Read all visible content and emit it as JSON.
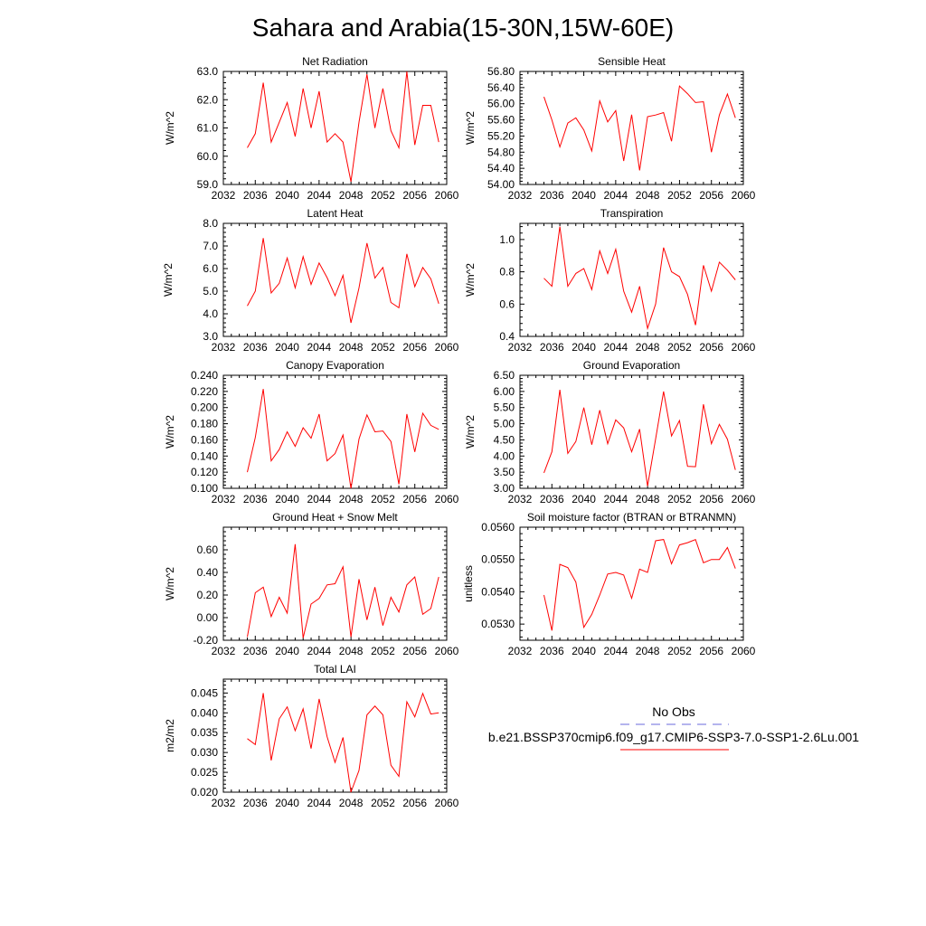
{
  "title": "Sahara and Arabia(15-30N,15W-60E)",
  "colors": {
    "model": "#ff0000",
    "obs": "#6a6adc",
    "axis": "#000000"
  },
  "legend": {
    "obs_label": "No Obs",
    "model_label": "b.e21.BSSP370cmip6.f09_g17.CMIP6-SSP3-7.0-SSP1-2.6Lu.001"
  },
  "chart_data": [
    {
      "type": "line",
      "title": "Net Radiation",
      "ylabel": "W/m^2",
      "xlim": [
        2032,
        2060
      ],
      "ylim": [
        59.0,
        63.0
      ],
      "xticks": [
        "2032",
        "2036",
        "2040",
        "2044",
        "2048",
        "2052",
        "2056",
        "2060"
      ],
      "yticks": [
        "59.0",
        "60.0",
        "61.0",
        "62.0",
        "63.0"
      ],
      "x": [
        2035,
        2036,
        2037,
        2038,
        2039,
        2040,
        2041,
        2042,
        2043,
        2044,
        2045,
        2046,
        2047,
        2048,
        2049,
        2050,
        2051,
        2052,
        2053,
        2054,
        2055,
        2056,
        2057,
        2058,
        2059
      ],
      "series": [
        {
          "values": [
            60.3,
            60.8,
            62.6,
            60.5,
            61.2,
            61.9,
            60.7,
            62.4,
            61.0,
            62.3,
            60.5,
            60.8,
            60.5,
            59.1,
            61.2,
            62.9,
            61.0,
            62.4,
            60.9,
            60.3,
            63.0,
            60.4,
            61.8,
            61.8,
            60.5
          ]
        }
      ]
    },
    {
      "type": "line",
      "title": "Sensible Heat",
      "ylabel": "W/m^2",
      "xlim": [
        2032,
        2060
      ],
      "ylim": [
        54.0,
        56.8
      ],
      "xticks": [
        "2032",
        "2036",
        "2040",
        "2044",
        "2048",
        "2052",
        "2056",
        "2060"
      ],
      "yticks": [
        "54.00",
        "54.40",
        "54.80",
        "55.20",
        "55.60",
        "56.00",
        "56.40",
        "56.80"
      ],
      "x": [
        2035,
        2036,
        2037,
        2038,
        2039,
        2040,
        2041,
        2042,
        2043,
        2044,
        2045,
        2046,
        2047,
        2048,
        2049,
        2050,
        2051,
        2052,
        2053,
        2054,
        2055,
        2056,
        2057,
        2058,
        2059
      ],
      "series": [
        {
          "values": [
            56.17,
            55.6,
            54.93,
            55.52,
            55.65,
            55.35,
            54.83,
            56.07,
            55.55,
            55.83,
            54.58,
            55.73,
            54.35,
            55.68,
            55.72,
            55.78,
            55.07,
            56.44,
            56.25,
            56.03,
            56.05,
            54.8,
            55.72,
            56.24,
            55.65
          ]
        }
      ]
    },
    {
      "type": "line",
      "title": "Latent Heat",
      "ylabel": "W/m^2",
      "xlim": [
        2032,
        2060
      ],
      "ylim": [
        3.0,
        8.0
      ],
      "xticks": [
        "2032",
        "2036",
        "2040",
        "2044",
        "2048",
        "2052",
        "2056",
        "2060"
      ],
      "yticks": [
        "3.0",
        "4.0",
        "5.0",
        "6.0",
        "7.0",
        "8.0"
      ],
      "x": [
        2035,
        2036,
        2037,
        2038,
        2039,
        2040,
        2041,
        2042,
        2043,
        2044,
        2045,
        2046,
        2047,
        2048,
        2049,
        2050,
        2051,
        2052,
        2053,
        2054,
        2055,
        2056,
        2057,
        2058,
        2059
      ],
      "series": [
        {
          "values": [
            4.35,
            5.0,
            7.35,
            4.92,
            5.35,
            6.47,
            5.15,
            6.53,
            5.3,
            6.25,
            5.6,
            4.8,
            5.7,
            3.6,
            5.15,
            7.13,
            5.58,
            6.05,
            4.5,
            4.27,
            6.65,
            5.2,
            6.05,
            5.55,
            4.45
          ]
        }
      ]
    },
    {
      "type": "line",
      "title": "Transpiration",
      "ylabel": "W/m^2",
      "xlim": [
        2032,
        2060
      ],
      "ylim": [
        0.4,
        1.1
      ],
      "xticks": [
        "2032",
        "2036",
        "2040",
        "2044",
        "2048",
        "2052",
        "2056",
        "2060"
      ],
      "yticks": [
        "0.4",
        "0.6",
        "0.8",
        "1.0"
      ],
      "x": [
        2035,
        2036,
        2037,
        2038,
        2039,
        2040,
        2041,
        2042,
        2043,
        2044,
        2045,
        2046,
        2047,
        2048,
        2049,
        2050,
        2051,
        2052,
        2053,
        2054,
        2055,
        2056,
        2057,
        2058,
        2059
      ],
      "series": [
        {
          "values": [
            0.76,
            0.71,
            1.08,
            0.71,
            0.79,
            0.82,
            0.69,
            0.93,
            0.79,
            0.94,
            0.68,
            0.55,
            0.71,
            0.45,
            0.6,
            0.95,
            0.8,
            0.77,
            0.66,
            0.47,
            0.84,
            0.68,
            0.86,
            0.81,
            0.75
          ]
        }
      ]
    },
    {
      "type": "line",
      "title": "Canopy Evaporation",
      "ylabel": "W/m^2",
      "xlim": [
        2032,
        2060
      ],
      "ylim": [
        0.1,
        0.24
      ],
      "xticks": [
        "2032",
        "2036",
        "2040",
        "2044",
        "2048",
        "2052",
        "2056",
        "2060"
      ],
      "yticks": [
        "0.100",
        "0.120",
        "0.140",
        "0.160",
        "0.180",
        "0.200",
        "0.220",
        "0.240"
      ],
      "x": [
        2035,
        2036,
        2037,
        2038,
        2039,
        2040,
        2041,
        2042,
        2043,
        2044,
        2045,
        2046,
        2047,
        2048,
        2049,
        2050,
        2051,
        2052,
        2053,
        2054,
        2055,
        2056,
        2057,
        2058,
        2059
      ],
      "series": [
        {
          "values": [
            0.12,
            0.163,
            0.223,
            0.134,
            0.148,
            0.17,
            0.152,
            0.175,
            0.162,
            0.192,
            0.134,
            0.143,
            0.166,
            0.1,
            0.161,
            0.191,
            0.17,
            0.171,
            0.158,
            0.105,
            0.192,
            0.145,
            0.193,
            0.178,
            0.173
          ]
        }
      ]
    },
    {
      "type": "line",
      "title": "Ground Evaporation",
      "ylabel": "W/m^2",
      "xlim": [
        2032,
        2060
      ],
      "ylim": [
        3.0,
        6.5
      ],
      "xticks": [
        "2032",
        "2036",
        "2040",
        "2044",
        "2048",
        "2052",
        "2056",
        "2060"
      ],
      "yticks": [
        "3.00",
        "3.50",
        "4.00",
        "4.50",
        "5.00",
        "5.50",
        "6.00",
        "6.50"
      ],
      "x": [
        2035,
        2036,
        2037,
        2038,
        2039,
        2040,
        2041,
        2042,
        2043,
        2044,
        2045,
        2046,
        2047,
        2048,
        2049,
        2050,
        2051,
        2052,
        2053,
        2054,
        2055,
        2056,
        2057,
        2058,
        2059
      ],
      "series": [
        {
          "values": [
            3.48,
            4.13,
            6.05,
            4.08,
            4.45,
            5.5,
            4.35,
            5.42,
            4.38,
            5.12,
            4.87,
            4.13,
            4.83,
            3.07,
            4.53,
            6.0,
            4.62,
            5.1,
            3.68,
            3.67,
            5.6,
            4.38,
            4.98,
            4.52,
            3.57
          ]
        }
      ]
    },
    {
      "type": "line",
      "title": "Ground Heat + Snow Melt",
      "ylabel": "W/m^2",
      "xlim": [
        2032,
        2060
      ],
      "ylim": [
        -0.2,
        0.8
      ],
      "xticks": [
        "2032",
        "2036",
        "2040",
        "2044",
        "2048",
        "2052",
        "2056",
        "2060"
      ],
      "yticks": [
        "-0.20",
        "0.00",
        "0.20",
        "0.40",
        "0.60"
      ],
      "x": [
        2035,
        2036,
        2037,
        2038,
        2039,
        2040,
        2041,
        2042,
        2043,
        2044,
        2045,
        2046,
        2047,
        2048,
        2049,
        2050,
        2051,
        2052,
        2053,
        2054,
        2055,
        2056,
        2057,
        2058,
        2059
      ],
      "series": [
        {
          "values": [
            -0.17,
            0.22,
            0.27,
            0.01,
            0.18,
            0.04,
            0.65,
            -0.18,
            0.12,
            0.17,
            0.29,
            0.3,
            0.45,
            -0.17,
            0.34,
            -0.02,
            0.27,
            -0.07,
            0.18,
            0.05,
            0.29,
            0.36,
            0.03,
            0.08,
            0.36
          ]
        }
      ]
    },
    {
      "type": "line",
      "title": "Soil moisture factor (BTRAN or BTRANMN)",
      "ylabel": "unitless",
      "xlim": [
        2032,
        2060
      ],
      "ylim": [
        0.0525,
        0.056
      ],
      "xticks": [
        "2032",
        "2036",
        "2040",
        "2044",
        "2048",
        "2052",
        "2056",
        "2060"
      ],
      "yticks": [
        "0.0530",
        "0.0540",
        "0.0550",
        "0.0560"
      ],
      "x": [
        2035,
        2036,
        2037,
        2038,
        2039,
        2040,
        2041,
        2042,
        2043,
        2044,
        2045,
        2046,
        2047,
        2048,
        2049,
        2050,
        2051,
        2052,
        2053,
        2054,
        2055,
        2056,
        2057,
        2058,
        2059
      ],
      "series": [
        {
          "values": [
            0.0539,
            0.0528,
            0.05485,
            0.05475,
            0.0543,
            0.0529,
            0.0533,
            0.0539,
            0.05455,
            0.0546,
            0.05452,
            0.0538,
            0.0547,
            0.0546,
            0.05558,
            0.05562,
            0.05487,
            0.05545,
            0.05552,
            0.05562,
            0.0549,
            0.055,
            0.055,
            0.05537,
            0.05472
          ]
        }
      ]
    },
    {
      "type": "line",
      "title": "Total LAI",
      "ylabel": "m2/m2",
      "xlim": [
        2032,
        2060
      ],
      "ylim": [
        0.02,
        0.0485
      ],
      "xticks": [
        "2032",
        "2036",
        "2040",
        "2044",
        "2048",
        "2052",
        "2056",
        "2060"
      ],
      "yticks": [
        "0.020",
        "0.025",
        "0.030",
        "0.035",
        "0.040",
        "0.045"
      ],
      "x": [
        2035,
        2036,
        2037,
        2038,
        2039,
        2040,
        2041,
        2042,
        2043,
        2044,
        2045,
        2046,
        2047,
        2048,
        2049,
        2050,
        2051,
        2052,
        2053,
        2054,
        2055,
        2056,
        2057,
        2058,
        2059
      ],
      "series": [
        {
          "values": [
            0.0335,
            0.032,
            0.045,
            0.028,
            0.0385,
            0.0415,
            0.0355,
            0.041,
            0.031,
            0.0435,
            0.034,
            0.0275,
            0.0338,
            0.02,
            0.0255,
            0.0395,
            0.0417,
            0.0395,
            0.0268,
            0.024,
            0.0428,
            0.039,
            0.0449,
            0.0397,
            0.04
          ]
        }
      ]
    }
  ]
}
